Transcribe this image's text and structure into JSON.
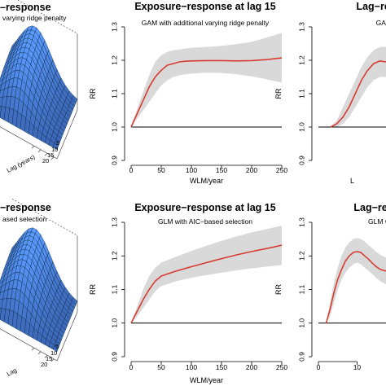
{
  "chart_data": [
    {
      "panel": "surface-top",
      "type": "surface",
      "title": "–response",
      "subtitle": "varying ridge penalty",
      "axes": {
        "lag_label": "Lag (years)",
        "lag_ticks": [
          "5",
          "10",
          "15",
          "20"
        ],
        "partial_label": "Lag"
      },
      "colors": {
        "surface": "#5ea8d8",
        "mesh": "#0b2a44"
      }
    },
    {
      "panel": "exposure-top",
      "type": "line",
      "title": "Exposure−response at lag 15",
      "subtitle": "GAM with additional varying ridge penalty",
      "xlabel": "WLM/year",
      "ylabel": "RR",
      "xlim": [
        0,
        250
      ],
      "ylim": [
        0.9,
        1.3
      ],
      "x_ticks": [
        0,
        50,
        100,
        150,
        200,
        250
      ],
      "y_ticks": [
        0.9,
        1.0,
        1.1,
        1.2,
        1.3
      ],
      "reference_line": 1.0,
      "series": [
        {
          "x": [
            0,
            10,
            20,
            30,
            40,
            50,
            60,
            70,
            80,
            90,
            100,
            125,
            150,
            175,
            200,
            225,
            250
          ],
          "values": [
            1.0,
            1.04,
            1.08,
            1.12,
            1.15,
            1.17,
            1.185,
            1.19,
            1.195,
            1.197,
            1.198,
            1.199,
            1.199,
            1.198,
            1.199,
            1.202,
            1.207
          ],
          "lower": [
            1.0,
            1.025,
            1.05,
            1.075,
            1.1,
            1.125,
            1.14,
            1.15,
            1.155,
            1.158,
            1.16,
            1.163,
            1.162,
            1.158,
            1.152,
            1.143,
            1.133
          ],
          "upper": [
            1.0,
            1.055,
            1.105,
            1.155,
            1.195,
            1.215,
            1.225,
            1.23,
            1.232,
            1.235,
            1.237,
            1.24,
            1.243,
            1.248,
            1.255,
            1.268,
            1.282
          ]
        }
      ],
      "colors": {
        "line": "#d63c32",
        "band": "#d9d9d9"
      }
    },
    {
      "panel": "lag-top",
      "type": "line",
      "title": "Lag−response",
      "subtitle": "GAM with",
      "xlabel": "L",
      "ylabel": "RR",
      "xlim": [
        0,
        11
      ],
      "ylim": [
        0.9,
        1.3
      ],
      "y_ticks": [
        0.9,
        1.0,
        1.1,
        1.2,
        1.3
      ],
      "reference_line": 1.0,
      "series": [
        {
          "x": [
            2,
            3,
            4,
            5,
            6,
            7,
            8,
            9,
            10,
            11
          ],
          "values": [
            1.0,
            1.01,
            1.03,
            1.06,
            1.1,
            1.14,
            1.17,
            1.19,
            1.198,
            1.195
          ],
          "lower": [
            1.0,
            1.0,
            1.01,
            1.03,
            1.06,
            1.09,
            1.12,
            1.14,
            1.15,
            1.15
          ],
          "upper": [
            1.0,
            1.02,
            1.06,
            1.1,
            1.14,
            1.18,
            1.21,
            1.23,
            1.24,
            1.24
          ]
        }
      ],
      "colors": {
        "line": "#d63c32",
        "band": "#d9d9d9"
      }
    },
    {
      "panel": "surface-bottom",
      "type": "surface",
      "title": "−response",
      "subtitle": "ased selection",
      "axes": {
        "lag_label": "Lag (years)",
        "lag_ticks": [
          "5",
          "10",
          "15",
          "20"
        ],
        "partial_label": "Lag"
      },
      "colors": {
        "surface": "#5ea8d8",
        "mesh": "#0b2a44"
      }
    },
    {
      "panel": "exposure-bottom",
      "type": "line",
      "title": "Exposure−response at lag 15",
      "subtitle": "GLM with AIC−based selection",
      "xlabel": "WLM/year",
      "ylabel": "RR",
      "xlim": [
        0,
        250
      ],
      "ylim": [
        0.9,
        1.3
      ],
      "x_ticks": [
        0,
        50,
        100,
        150,
        200,
        250
      ],
      "y_ticks": [
        0.9,
        1.0,
        1.1,
        1.2,
        1.3
      ],
      "reference_line": 1.0,
      "series": [
        {
          "x": [
            0,
            10,
            20,
            30,
            40,
            50,
            75,
            100,
            125,
            150,
            175,
            200,
            225,
            250
          ],
          "values": [
            1.0,
            1.035,
            1.07,
            1.1,
            1.125,
            1.14,
            1.155,
            1.168,
            1.18,
            1.192,
            1.203,
            1.213,
            1.222,
            1.232
          ],
          "lower": [
            1.0,
            1.02,
            1.045,
            1.07,
            1.095,
            1.11,
            1.125,
            1.135,
            1.143,
            1.15,
            1.157,
            1.163,
            1.168,
            1.173
          ],
          "upper": [
            1.0,
            1.05,
            1.1,
            1.14,
            1.165,
            1.18,
            1.198,
            1.215,
            1.23,
            1.245,
            1.258,
            1.27,
            1.28,
            1.29
          ]
        }
      ],
      "colors": {
        "line": "#d63c32",
        "band": "#d9d9d9"
      }
    },
    {
      "panel": "lag-bottom",
      "type": "line",
      "title": "Lag−respon",
      "subtitle": "GLM with",
      "xlabel": "",
      "ylabel": "RR",
      "xlim": [
        0,
        17.5
      ],
      "ylim": [
        0.9,
        1.3
      ],
      "x_ticks": [
        0,
        10
      ],
      "y_ticks": [
        0.9,
        1.0,
        1.1,
        1.2,
        1.3
      ],
      "reference_line": 1.0,
      "series": [
        {
          "x": [
            2,
            3,
            4,
            5,
            6,
            7,
            8,
            9,
            10,
            11,
            12,
            13,
            14,
            15,
            16,
            17.5
          ],
          "values": [
            1.0,
            1.04,
            1.09,
            1.13,
            1.16,
            1.185,
            1.2,
            1.21,
            1.213,
            1.21,
            1.2,
            1.19,
            1.178,
            1.168,
            1.16,
            1.155
          ],
          "lower": [
            1.0,
            1.02,
            1.06,
            1.1,
            1.13,
            1.15,
            1.165,
            1.175,
            1.18,
            1.175,
            1.165,
            1.155,
            1.145,
            1.135,
            1.125,
            1.115
          ],
          "upper": [
            1.0,
            1.06,
            1.12,
            1.165,
            1.2,
            1.225,
            1.24,
            1.25,
            1.253,
            1.25,
            1.242,
            1.232,
            1.222,
            1.212,
            1.203,
            1.195
          ]
        }
      ],
      "colors": {
        "line": "#d63c32",
        "band": "#d9d9d9"
      }
    }
  ]
}
